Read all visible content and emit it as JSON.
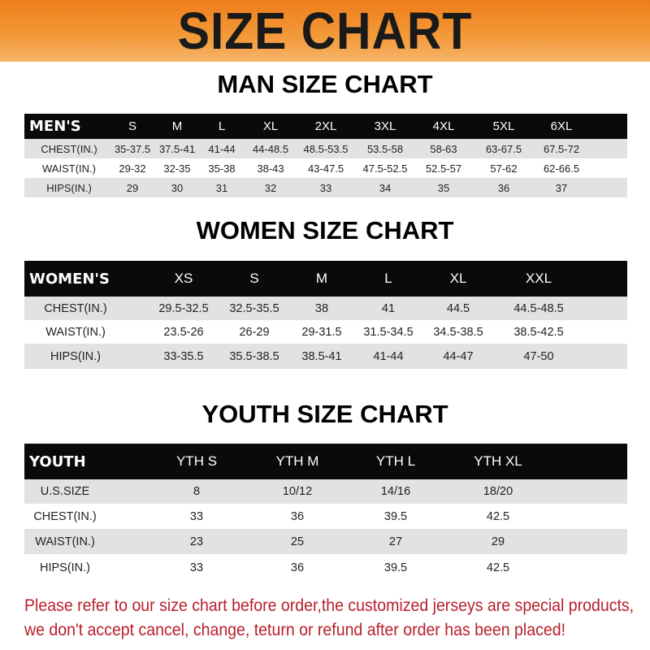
{
  "banner_title": "SIZE CHART",
  "colors": {
    "banner": "#f07d1a",
    "header_row": "#0a0a0a",
    "note": "#b8202a"
  },
  "men": {
    "title": "MAN SIZE CHART",
    "header": [
      "MEN'S",
      "S",
      "M",
      "L",
      "XL",
      "2XL",
      "3XL",
      "4XL",
      "5XL",
      "6XL"
    ],
    "rows": [
      [
        "CHEST(IN.)",
        "35-37.5",
        "37.5-41",
        "41-44",
        "44-48.5",
        "48.5-53.5",
        "53.5-58",
        "58-63",
        "63-67.5",
        "67.5-72"
      ],
      [
        "WAIST(IN.)",
        "29-32",
        "32-35",
        "35-38",
        "38-43",
        "43-47.5",
        "47.5-52.5",
        "52.5-57",
        "57-62",
        "62-66.5"
      ],
      [
        "HIPS(IN.)",
        "29",
        "30",
        "31",
        "32",
        "33",
        "34",
        "35",
        "36",
        "37"
      ]
    ]
  },
  "women": {
    "title": "WOMEN SIZE CHART",
    "header": [
      "WOMEN'S",
      "XS",
      "S",
      "M",
      "L",
      "XL",
      "XXL"
    ],
    "rows": [
      [
        "CHEST(IN.)",
        "29.5-32.5",
        "32.5-35.5",
        "38",
        "41",
        "44.5",
        "44.5-48.5"
      ],
      [
        "WAIST(IN.)",
        "23.5-26",
        "26-29",
        "29-31.5",
        "31.5-34.5",
        "34.5-38.5",
        "38.5-42.5"
      ],
      [
        "HIPS(IN.)",
        "33-35.5",
        "35.5-38.5",
        "38.5-41",
        "41-44",
        "44-47",
        "47-50"
      ]
    ]
  },
  "youth": {
    "title": "YOUTH SIZE CHART",
    "header": [
      "YOUTH",
      "YTH S",
      "YTH M",
      "YTH L",
      "YTH XL"
    ],
    "rows": [
      [
        "U.S.SIZE",
        "8",
        "10/12",
        "14/16",
        "18/20"
      ],
      [
        "CHEST(IN.)",
        "33",
        "36",
        "39.5",
        "42.5"
      ],
      [
        "WAIST(IN.)",
        "23",
        "25",
        "27",
        "29"
      ],
      [
        "HIPS(IN.)",
        "33",
        "36",
        "39.5",
        "42.5"
      ]
    ]
  },
  "notice": [
    "Please refer to our size chart before order,the customized jerseys are special products,",
    "we don't accept cancel, change, teturn or refund after order has been placed!"
  ]
}
